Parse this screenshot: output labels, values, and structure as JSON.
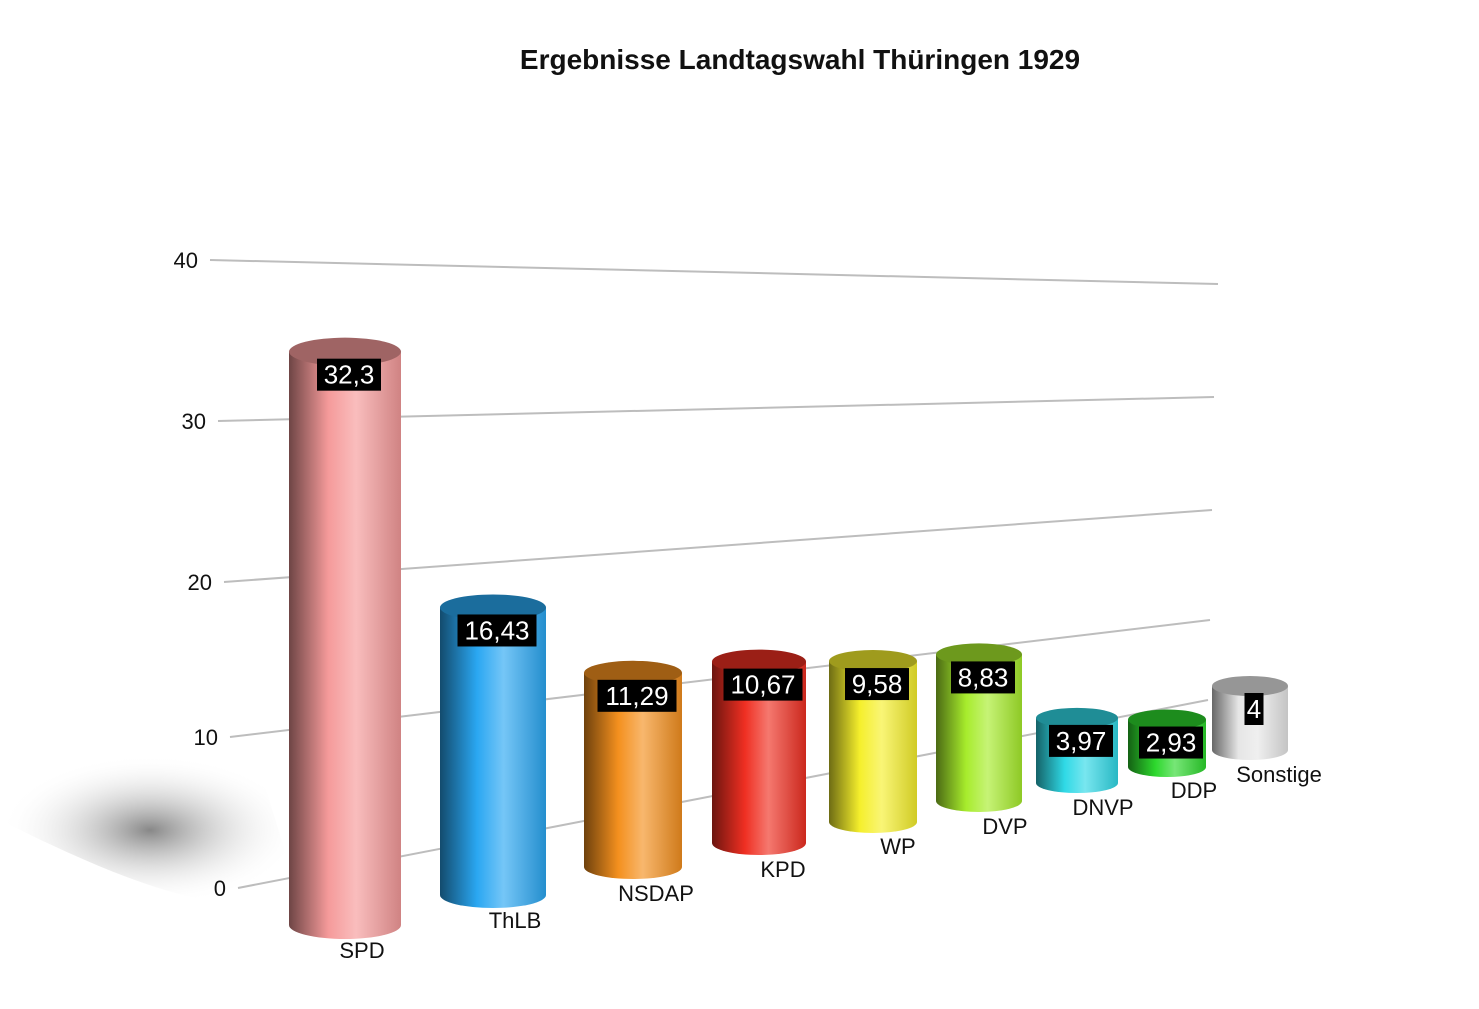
{
  "chart_data": {
    "type": "bar",
    "title": "Ergebnisse Landtagswahl Thüringen 1929",
    "xlabel": "",
    "ylabel": "",
    "ylim": [
      0,
      40
    ],
    "yticks": [
      "0",
      "10",
      "20",
      "30",
      "40"
    ],
    "grid": true,
    "categories": [
      "SPD",
      "ThLB",
      "NSDAP",
      "KPD",
      "WP",
      "DVP",
      "DNVP",
      "DDP",
      "Sonstige"
    ],
    "values": [
      32.3,
      16.43,
      11.29,
      10.67,
      9.58,
      8.83,
      3.97,
      2.93,
      4
    ],
    "value_labels": [
      "32,3",
      "16,43",
      "11,29",
      "10,67",
      "9,58",
      "8,83",
      "3,97",
      "2,93",
      "4"
    ],
    "colors": [
      "#f59a9a",
      "#2aa7f2",
      "#f4901e",
      "#ef2f22",
      "#f5ef2c",
      "#a7ec2c",
      "#2fd9e6",
      "#2dd82d",
      "#e6e6e6"
    ]
  }
}
